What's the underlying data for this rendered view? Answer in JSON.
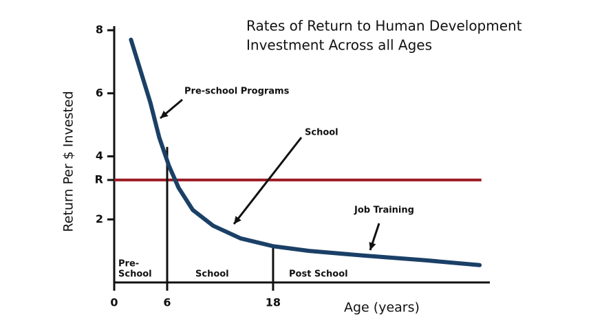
{
  "chart_data": {
    "type": "line",
    "title": [
      "Rates of Return to Human Development",
      "Investment Across all Ages"
    ],
    "x_label": "Age (years)",
    "y_label": "Return Per $ Invested",
    "x": [
      1.9,
      3.0,
      4.1,
      5.1,
      6.2,
      7.3,
      8.9,
      11.2,
      14.3,
      18,
      22.1,
      28.4,
      35.4,
      41.4
    ],
    "series": [
      {
        "color": "#1b4067",
        "values": [
          7.7,
          6.7,
          5.7,
          4.6,
          3.7,
          3.0,
          2.3,
          1.8,
          1.4,
          1.15,
          1.0,
          0.85,
          0.7,
          0.55
        ]
      }
    ],
    "xlim": [
      0,
      42.4
    ],
    "ylim": [
      0,
      8
    ],
    "xticks": [
      0,
      6,
      18
    ],
    "yticks": [
      2,
      4,
      6,
      8,
      {
        "value": 3.25,
        "label": "R"
      }
    ],
    "reference_line": {
      "value": 3.25,
      "color": "#9b1c25",
      "x_end": 41.6
    },
    "dividers": [
      {
        "x": 6,
        "top": 4.3
      },
      {
        "x": 18,
        "top": 1.2
      }
    ],
    "regions": [
      [
        "Pre-",
        "School"
      ],
      [
        "School"
      ],
      [
        "Post School"
      ]
    ],
    "annotations": [
      "Pre-school Programs",
      "School",
      "Job Training"
    ]
  }
}
